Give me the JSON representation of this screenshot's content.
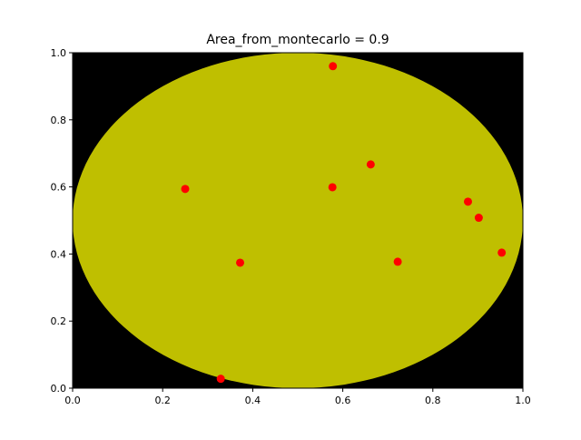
{
  "chart_data": {
    "type": "scatter",
    "title": "Area_from_montecarlo = 0.9",
    "xlabel": "",
    "ylabel": "",
    "xlim": [
      0,
      1
    ],
    "ylim": [
      0,
      1
    ],
    "xticks": [
      "0.0",
      "0.2",
      "0.4",
      "0.6",
      "0.8",
      "1.0"
    ],
    "yticks": [
      "0.0",
      "0.2",
      "0.4",
      "0.6",
      "0.8",
      "1.0"
    ],
    "grid": false,
    "background_color": "#000000",
    "ellipse": {
      "cx": 0.5,
      "cy": 0.5,
      "rx": 0.5,
      "ry": 0.5,
      "color": "#bfbf00"
    },
    "series": [
      {
        "marker_color": "#ff0000",
        "points": [
          {
            "x": 0.578,
            "y": 0.96
          },
          {
            "x": 0.662,
            "y": 0.667
          },
          {
            "x": 0.25,
            "y": 0.594
          },
          {
            "x": 0.577,
            "y": 0.599
          },
          {
            "x": 0.878,
            "y": 0.556
          },
          {
            "x": 0.902,
            "y": 0.508
          },
          {
            "x": 0.953,
            "y": 0.404
          },
          {
            "x": 0.372,
            "y": 0.374
          },
          {
            "x": 0.722,
            "y": 0.377
          },
          {
            "x": 0.329,
            "y": 0.028
          }
        ]
      }
    ]
  }
}
